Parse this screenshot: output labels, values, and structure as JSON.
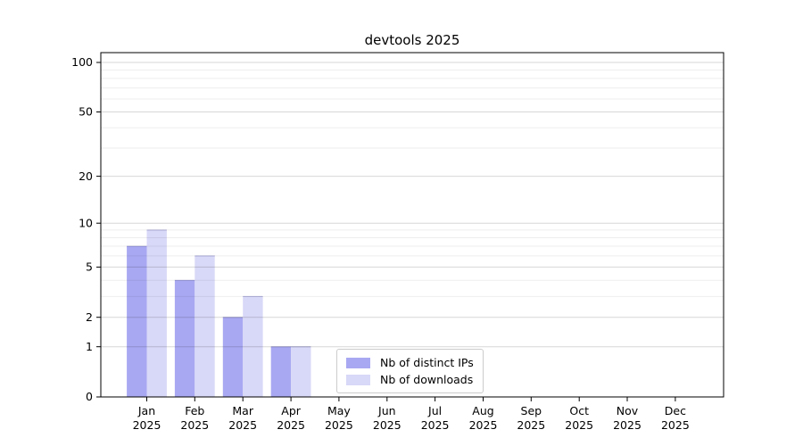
{
  "chart_data": {
    "type": "bar",
    "title": "devtools 2025",
    "categories": [
      "Jan",
      "Feb",
      "Mar",
      "Apr",
      "May",
      "Jun",
      "Jul",
      "Aug",
      "Sep",
      "Oct",
      "Nov",
      "Dec"
    ],
    "x_year_label": "2025",
    "series": [
      {
        "name": "Nb of distinct IPs",
        "color": "#a8a8f2",
        "values": [
          7,
          4,
          2,
          1,
          0,
          0,
          0,
          0,
          0,
          0,
          0,
          0
        ]
      },
      {
        "name": "Nb of downloads",
        "color": "#d8d8f8",
        "values": [
          9,
          6,
          3,
          1,
          0,
          0,
          0,
          0,
          0,
          0,
          0,
          0
        ]
      }
    ],
    "y_scale": "log1p",
    "y_ticks": [
      0,
      1,
      2,
      5,
      10,
      20,
      50,
      100
    ],
    "y_minor_ticks": [
      3,
      4,
      6,
      7,
      8,
      9,
      30,
      40,
      60,
      70,
      80,
      90
    ],
    "ylim": [
      0,
      115
    ],
    "grid": "horizontal",
    "legend_position": "inside-bottom-center",
    "colors": {
      "major_grid": "rgba(0,0,0,0.155)",
      "minor_grid": "rgba(0,0,0,0.066)",
      "spine": "#000000",
      "text": "#000000",
      "legend_border": "#cccccc",
      "bar_top_edge": "rgba(90,90,170,0.40)"
    }
  }
}
